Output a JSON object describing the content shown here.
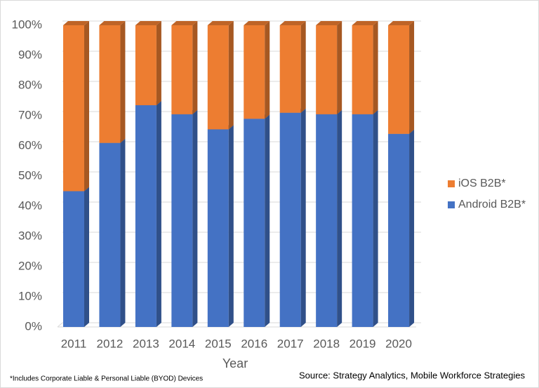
{
  "chart_data": {
    "type": "stacked-bar-3d",
    "categories": [
      "2011",
      "2012",
      "2013",
      "2014",
      "2015",
      "2016",
      "2017",
      "2018",
      "2019",
      "2020"
    ],
    "series": [
      {
        "name": "Android B2B*",
        "color": "#4472c4",
        "values": [
          45,
          61,
          73.5,
          70.5,
          65.5,
          69,
          71,
          70.5,
          70.5,
          64
        ]
      },
      {
        "name": "iOS B2B*",
        "color": "#ed7d31",
        "values": [
          55,
          39,
          26.5,
          29.5,
          34.5,
          31,
          29,
          29.5,
          29.5,
          36
        ]
      }
    ],
    "ylim": [
      0,
      100
    ],
    "yticks": [
      {
        "value": 0,
        "label": "0%"
      },
      {
        "value": 10,
        "label": "10%"
      },
      {
        "value": 20,
        "label": "20%"
      },
      {
        "value": 30,
        "label": "30%"
      },
      {
        "value": 40,
        "label": "40%"
      },
      {
        "value": 50,
        "label": "50%"
      },
      {
        "value": 60,
        "label": "60%"
      },
      {
        "value": 70,
        "label": "70%"
      },
      {
        "value": 80,
        "label": "80%"
      },
      {
        "value": 90,
        "label": "90%"
      },
      {
        "value": 100,
        "label": "100%"
      }
    ],
    "grid": true,
    "x_label": "Year",
    "source": "Source: Strategy Analytics, Mobile Workforce Strategies",
    "note": "*Includes Corporate Liable & Personal Liable (BYOD) Devices"
  }
}
